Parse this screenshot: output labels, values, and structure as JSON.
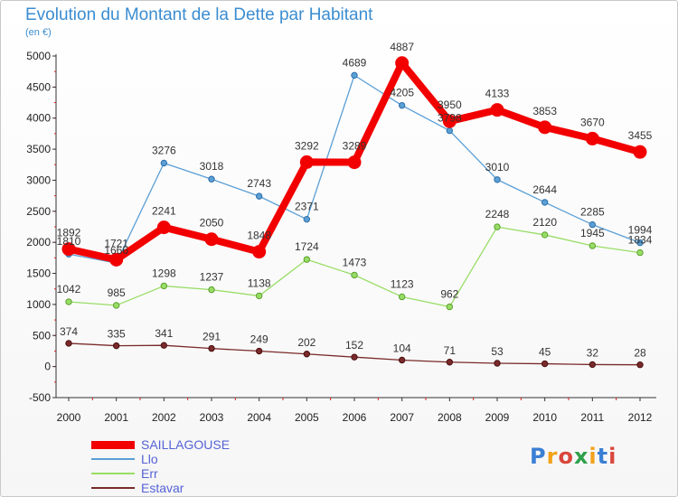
{
  "title": "Evolution du Montant de la Dette par Habitant",
  "subtitle": "(en €)",
  "brand": {
    "text": "Proxiti",
    "colors": [
      "#3a7fd4",
      "#f3a21a",
      "#d9473c",
      "#2fa04a",
      "#f3a21a",
      "#3a7fd4",
      "#d9473c"
    ]
  },
  "chart_data": {
    "type": "line",
    "x": [
      "2000",
      "2001",
      "2002",
      "2003",
      "2004",
      "2005",
      "2006",
      "2007",
      "2008",
      "2009",
      "2010",
      "2011",
      "2012"
    ],
    "ylim": [
      -500,
      5000
    ],
    "yticks": [
      "-500",
      "0",
      "500",
      "1000",
      "1500",
      "2000",
      "2500",
      "3000",
      "3500",
      "4000",
      "4500",
      "5000"
    ],
    "grid": false,
    "legend_position": "bottom-left",
    "series": [
      {
        "name": "SAILLAGOUSE",
        "color": "#f20000",
        "values": [
          1892,
          1721,
          2241,
          2050,
          1848,
          3292,
          3289,
          4887,
          3950,
          4133,
          3853,
          3670,
          3455
        ],
        "labels": [
          "1892",
          "1721",
          "2241",
          "2050",
          "1848",
          "3292",
          "3289",
          "4887",
          "3950",
          "4133",
          "3853",
          "3670",
          "3455"
        ]
      },
      {
        "name": "Llo",
        "color": "#5a9fd6",
        "values": [
          1810,
          1666,
          3276,
          3018,
          2743,
          2371,
          4689,
          4205,
          3798,
          3010,
          2644,
          2285,
          1994
        ],
        "labels": [
          "1810",
          "1666",
          "3276",
          "3018",
          "2743",
          "2371",
          "4689",
          "4205",
          "3798",
          "3010",
          "2644",
          "2285",
          "1994"
        ]
      },
      {
        "name": "Err",
        "color": "#99dd66",
        "values": [
          1042,
          985,
          1298,
          1237,
          1138,
          1724,
          1473,
          1123,
          962,
          2248,
          2120,
          1945,
          1834
        ],
        "labels": [
          "1042",
          "985",
          "1298",
          "1237",
          "1138",
          "1724",
          "1473",
          "1123",
          "962",
          "2248",
          "2120",
          "1945",
          "1834"
        ]
      },
      {
        "name": "Estavar",
        "color": "#7a2a2a",
        "values": [
          374,
          335,
          341,
          291,
          249,
          202,
          152,
          104,
          71,
          53,
          45,
          32,
          28
        ],
        "labels": [
          "374",
          "335",
          "341",
          "291",
          "249",
          "202",
          "152",
          "104",
          "71",
          "53",
          "45",
          "32",
          "28"
        ]
      }
    ]
  }
}
